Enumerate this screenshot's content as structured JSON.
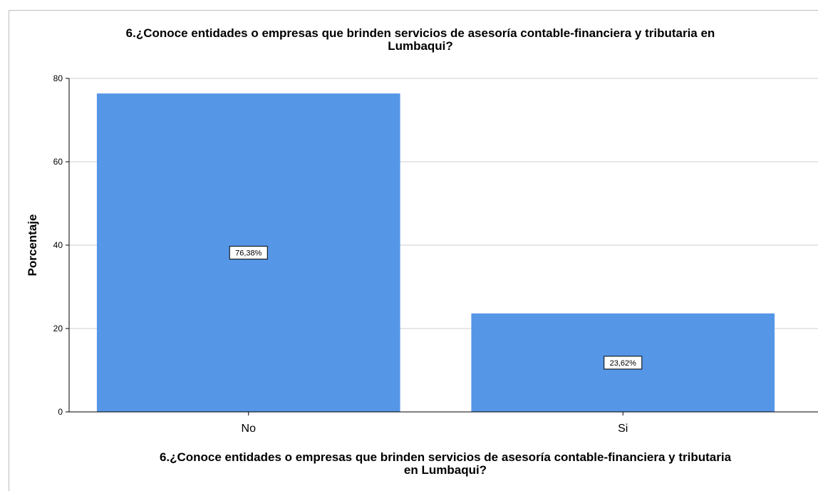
{
  "chart_data": {
    "type": "bar",
    "title_lines": [
      "6.¿Conoce entidades o empresas que brinden servicios de asesoría contable-financiera y tributaria en",
      "Lumbaqui?"
    ],
    "xlabel_lines": [
      "6.¿Conoce entidades o empresas que brinden servicios de asesoría contable-financiera y tributaria",
      "en Lumbaqui?"
    ],
    "ylabel": "Porcentaje",
    "categories": [
      "No",
      "Si"
    ],
    "values": [
      76.38,
      23.62
    ],
    "data_labels": [
      "76,38%",
      "23,62%"
    ],
    "ylim": [
      0,
      80
    ],
    "yticks": [
      0,
      20,
      40,
      60,
      80
    ],
    "grid": true,
    "bar_color": "#5596e6"
  }
}
